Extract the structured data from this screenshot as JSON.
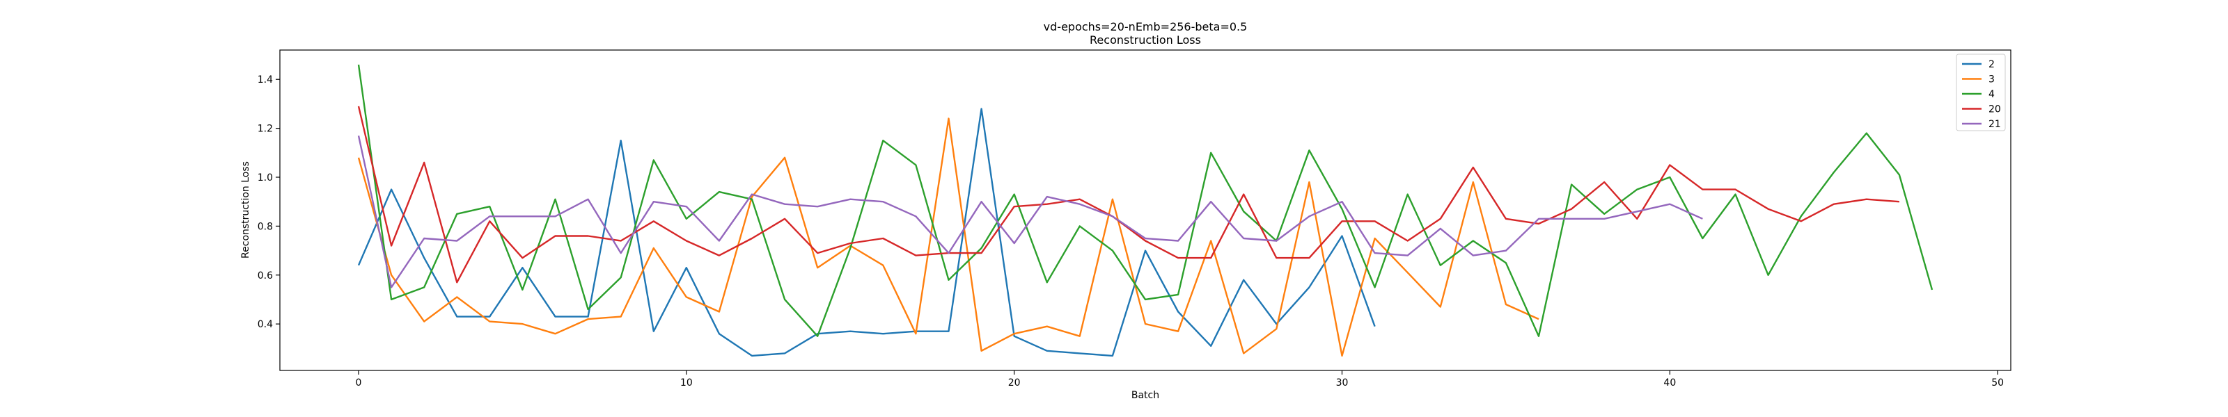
{
  "chart_data": {
    "type": "line",
    "title": "vd-epochs=20-nEmb=256-beta=0.5",
    "subtitle": "Reconstruction Loss",
    "xlabel": "Batch",
    "ylabel": "Reconstruction Loss",
    "xlim": [
      -2.4,
      50.4
    ],
    "ylim": [
      0.21,
      1.52
    ],
    "xticks": [
      0,
      10,
      20,
      30,
      40,
      50
    ],
    "yticks": [
      0.4,
      0.6,
      0.8,
      1.0,
      1.2,
      1.4
    ],
    "xtick_labels": [
      "0",
      "10",
      "20",
      "30",
      "40",
      "50"
    ],
    "ytick_labels": [
      "0.4",
      "0.6",
      "0.8",
      "1.0",
      "1.2",
      "1.4"
    ],
    "grid": false,
    "legend_position": "top-right",
    "series": [
      {
        "name": "2",
        "color": "#1f77b4",
        "values": [
          0.64,
          0.95,
          0.67,
          0.43,
          0.43,
          0.63,
          0.43,
          0.43,
          1.15,
          0.37,
          0.63,
          0.36,
          0.27,
          0.28,
          0.36,
          0.37,
          0.36,
          0.37,
          0.37,
          1.28,
          0.35,
          0.29,
          0.28,
          0.27,
          0.7,
          0.45,
          0.31,
          0.58,
          0.4,
          0.55,
          0.76,
          0.39
        ]
      },
      {
        "name": "3",
        "color": "#ff7f0e",
        "values": [
          1.08,
          0.6,
          0.41,
          0.51,
          0.41,
          0.4,
          0.36,
          0.42,
          0.43,
          0.71,
          0.51,
          0.45,
          0.92,
          1.08,
          0.63,
          0.72,
          0.64,
          0.36,
          1.24,
          0.29,
          0.36,
          0.39,
          0.35,
          0.91,
          0.4,
          0.37,
          0.74,
          0.28,
          0.38,
          0.98,
          0.27,
          0.75,
          0.61,
          0.47,
          0.98,
          0.48,
          0.42
        ]
      },
      {
        "name": "4",
        "color": "#2ca02c",
        "values": [
          1.46,
          0.5,
          0.55,
          0.85,
          0.88,
          0.54,
          0.91,
          0.46,
          0.59,
          1.07,
          0.83,
          0.94,
          0.91,
          0.5,
          0.35,
          0.71,
          1.15,
          1.05,
          0.58,
          0.71,
          0.93,
          0.57,
          0.8,
          0.7,
          0.5,
          0.52,
          1.1,
          0.86,
          0.74,
          1.11,
          0.87,
          0.55,
          0.93,
          0.64,
          0.74,
          0.65,
          0.35,
          0.97,
          0.85,
          0.95,
          1.0,
          0.75,
          0.93,
          0.6,
          0.84,
          1.02,
          1.18,
          1.01,
          0.54
        ]
      },
      {
        "name": "20",
        "color": "#d62728",
        "values": [
          1.29,
          0.72,
          1.06,
          0.57,
          0.82,
          0.67,
          0.76,
          0.76,
          0.74,
          0.82,
          0.74,
          0.68,
          0.75,
          0.83,
          0.69,
          0.73,
          0.75,
          0.68,
          0.69,
          0.69,
          0.88,
          0.89,
          0.91,
          0.84,
          0.74,
          0.67,
          0.67,
          0.93,
          0.67,
          0.67,
          0.82,
          0.82,
          0.74,
          0.83,
          1.04,
          0.83,
          0.81,
          0.87,
          0.98,
          0.83,
          1.05,
          0.95,
          0.95,
          0.87,
          0.82,
          0.89,
          0.91,
          0.9
        ]
      },
      {
        "name": "21",
        "color": "#9467bd",
        "values": [
          1.17,
          0.55,
          0.75,
          0.74,
          0.84,
          0.84,
          0.84,
          0.91,
          0.69,
          0.9,
          0.88,
          0.74,
          0.93,
          0.89,
          0.88,
          0.91,
          0.9,
          0.84,
          0.69,
          0.9,
          0.73,
          0.92,
          0.89,
          0.84,
          0.75,
          0.74,
          0.9,
          0.75,
          0.74,
          0.84,
          0.9,
          0.69,
          0.68,
          0.79,
          0.68,
          0.7,
          0.83,
          0.83,
          0.83,
          0.86,
          0.89,
          0.83
        ]
      }
    ]
  }
}
